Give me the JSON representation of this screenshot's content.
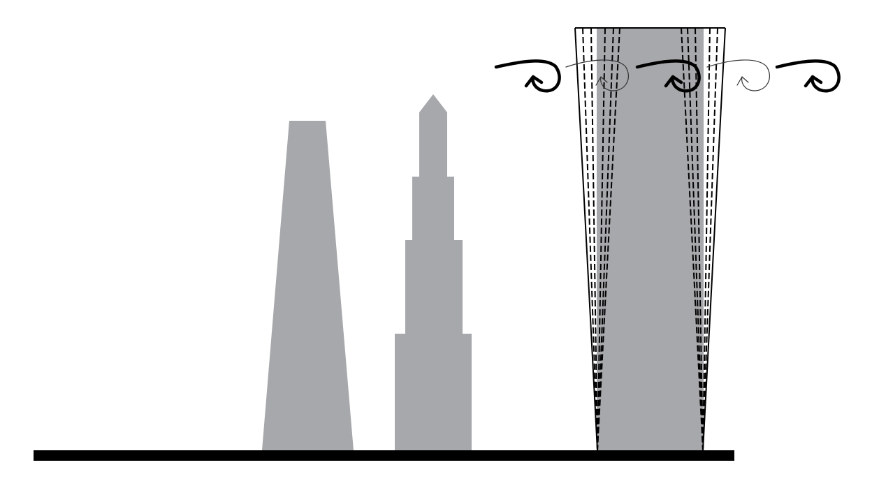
{
  "diagram": {
    "subject": "tower-shapes-wind-vortex-shedding",
    "colors": {
      "background": "#ffffff",
      "building": "#a7a8ab",
      "ground": "#000000",
      "outline": "#000000",
      "vortex_strong": "#000000",
      "vortex_weak": "#333333"
    },
    "buildings": [
      {
        "id": "tapered-tower",
        "shape": "trapezoid"
      },
      {
        "id": "setback-tower",
        "shape": "stepped-with-spire"
      },
      {
        "id": "prismatic-tower",
        "shape": "rectangle-with-deflection-envelope"
      }
    ],
    "vortices": [
      {
        "id": "vortex-1",
        "strength": "strong"
      },
      {
        "id": "vortex-2",
        "strength": "weak"
      },
      {
        "id": "vortex-3",
        "strength": "strong"
      },
      {
        "id": "vortex-4",
        "strength": "weak"
      },
      {
        "id": "vortex-5",
        "strength": "strong"
      }
    ]
  }
}
